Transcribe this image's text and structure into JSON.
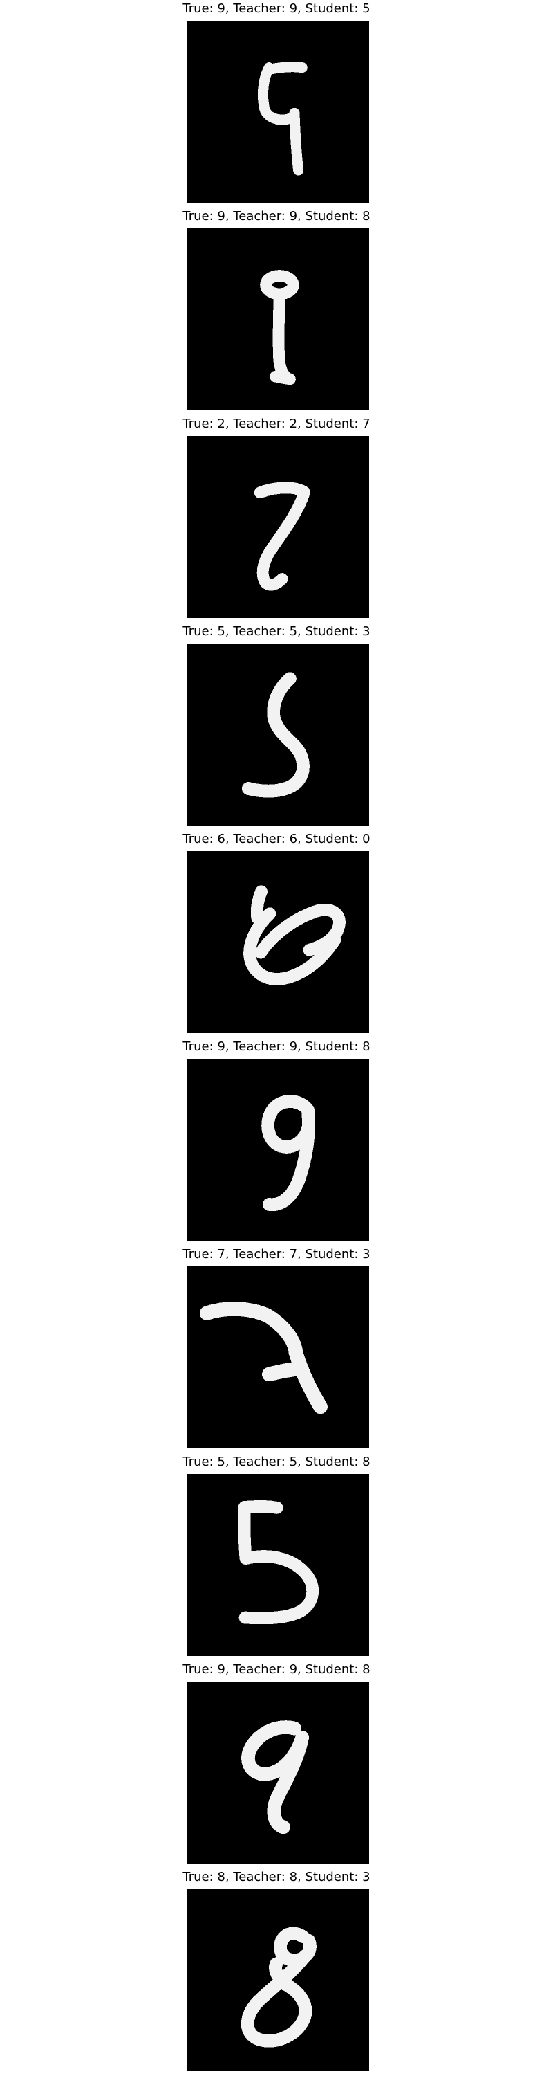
{
  "panels": [
    {
      "title": "True: 9, Teacher: 9, Student: 5",
      "true_label": 9,
      "teacher_prediction": 9,
      "student_prediction": 5
    },
    {
      "title": "True: 9, Teacher: 9, Student: 8",
      "true_label": 9,
      "teacher_prediction": 9,
      "student_prediction": 8
    },
    {
      "title": "True: 2, Teacher: 2, Student: 7",
      "true_label": 2,
      "teacher_prediction": 2,
      "student_prediction": 7
    },
    {
      "title": "True: 5, Teacher: 5, Student: 3",
      "true_label": 5,
      "teacher_prediction": 5,
      "student_prediction": 3
    },
    {
      "title": "True: 6, Teacher: 6, Student: 0",
      "true_label": 6,
      "teacher_prediction": 6,
      "student_prediction": 0
    },
    {
      "title": "True: 9, Teacher: 9, Student: 8",
      "true_label": 9,
      "teacher_prediction": 9,
      "student_prediction": 8
    },
    {
      "title": "True: 7, Teacher: 7, Student: 3",
      "true_label": 7,
      "teacher_prediction": 7,
      "student_prediction": 3
    },
    {
      "title": "True: 5, Teacher: 5, Student: 8",
      "true_label": 5,
      "teacher_prediction": 5,
      "student_prediction": 8
    },
    {
      "title": "True: 9, Teacher: 9, Student: 8",
      "true_label": 9,
      "teacher_prediction": 9,
      "student_prediction": 8
    },
    {
      "title": "True: 8, Teacher: 8, Student: 3",
      "true_label": 8,
      "teacher_prediction": 8,
      "student_prediction": 3
    }
  ],
  "colors": {
    "image_background": "#000000",
    "stroke": "#f2f2f2",
    "page_background": "#ffffff"
  }
}
